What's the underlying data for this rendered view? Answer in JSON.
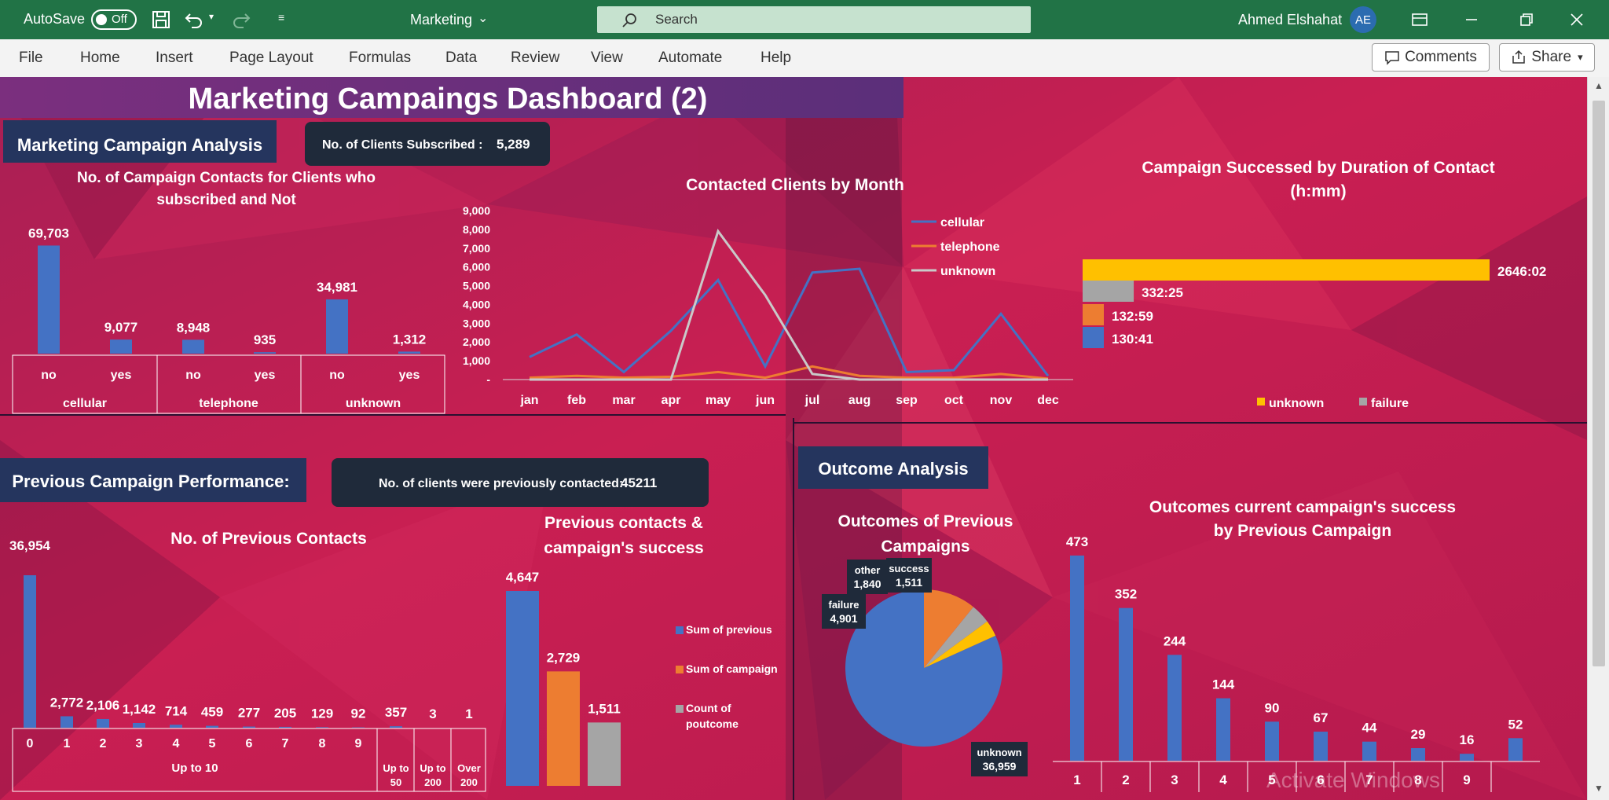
{
  "titlebar": {
    "autosave_label": "AutoSave",
    "autosave_state": "Off",
    "doc_title": "Marketing",
    "search_placeholder": "Search",
    "user_name": "Ahmed Elshahat",
    "user_initials": "AE"
  },
  "ribbon": {
    "menus": [
      "File",
      "Home",
      "Insert",
      "Page Layout",
      "Formulas",
      "Data",
      "Review",
      "View",
      "Automate",
      "Help"
    ],
    "comments_label": "Comments",
    "share_label": "Share"
  },
  "dashboard": {
    "title": "Marketing Campaings Dashboard (2)",
    "section_campaign": "Marketing Campaign Analysis",
    "kpi_subscribed_label": "No. of Clients Subscribed :",
    "kpi_subscribed_value": "5,289",
    "section_previous": "Previous Campaign Performance:",
    "kpi_prev_label": "No. of clients were previously contacted:",
    "kpi_prev_value": "45211",
    "section_outcome": "Outcome Analysis",
    "watermark": "Activate Windows"
  },
  "chart_data": [
    {
      "type": "bar",
      "title": "No. of Campaign Contacts for Clients who subscribed and Not",
      "groups": [
        "cellular",
        "telephone",
        "unknown"
      ],
      "categories": [
        "no",
        "yes",
        "no",
        "yes",
        "no",
        "yes"
      ],
      "values": [
        69703,
        9077,
        8948,
        935,
        34981,
        1312
      ],
      "labels": [
        "69,703",
        "9,077",
        "8,948",
        "935",
        "34,981",
        "1,312"
      ],
      "color": "#4472c4",
      "ylim": [
        0,
        75000
      ]
    },
    {
      "type": "line",
      "title": "Contacted Clients by Month",
      "x": [
        "jan",
        "feb",
        "mar",
        "apr",
        "may",
        "jun",
        "jul",
        "aug",
        "sep",
        "oct",
        "nov",
        "dec"
      ],
      "yticks": [
        "9,000",
        "8,000",
        "7,000",
        "6,000",
        "5,000",
        "4,000",
        "3,000",
        "2,000",
        "1,000",
        "-"
      ],
      "ylim": [
        0,
        9000
      ],
      "series": [
        {
          "name": "cellular",
          "color": "#4472c4",
          "values": [
            1200,
            2400,
            400,
            2600,
            5300,
            700,
            5700,
            5900,
            400,
            500,
            3500,
            200
          ]
        },
        {
          "name": "telephone",
          "color": "#ed7d31",
          "values": [
            100,
            200,
            100,
            150,
            400,
            100,
            700,
            200,
            100,
            100,
            300,
            50
          ]
        },
        {
          "name": "unknown",
          "color": "#c9c9c9",
          "values": [
            0,
            0,
            0,
            0,
            7900,
            4500,
            300,
            0,
            0,
            0,
            0,
            0
          ]
        }
      ]
    },
    {
      "type": "bar",
      "orientation": "horizontal",
      "title": "Campaign Successed by Duration of Contact (h:mm)",
      "labels": [
        "2646:02",
        "332:25",
        "132:59",
        "130:41"
      ],
      "values_minutes": [
        158762,
        19945,
        7979,
        7841
      ],
      "colors": [
        "#ffc000",
        "#a5a5a5",
        "#ed7d31",
        "#4472c4"
      ],
      "legend": [
        {
          "name": "unknown",
          "color": "#ffc000"
        },
        {
          "name": "failure",
          "color": "#a5a5a5"
        }
      ]
    },
    {
      "type": "bar",
      "title": "No. of Previous Contacts",
      "categories": [
        "0",
        "1",
        "2",
        "3",
        "4",
        "5",
        "6",
        "7",
        "8",
        "9",
        "Up to 50",
        "Up to 200",
        "Over 200"
      ],
      "group_label": "Up to 10",
      "values": [
        36954,
        2772,
        2106,
        1142,
        714,
        459,
        277,
        205,
        129,
        92,
        357,
        3,
        1
      ],
      "labels": [
        "36,954",
        "2,772",
        "2,106",
        "1,142",
        "714",
        "459",
        "277",
        "205",
        "129",
        "92",
        "357",
        "3",
        "1"
      ],
      "color": "#4472c4",
      "ylim": [
        0,
        40000
      ]
    },
    {
      "type": "bar",
      "title": "Previous contacts & campaign's success",
      "series": [
        {
          "name": "Sum of previous",
          "color": "#4472c4",
          "value": 4647,
          "label": "4,647"
        },
        {
          "name": "Sum of campaign",
          "color": "#ed7d31",
          "value": 2729,
          "label": "2,729"
        },
        {
          "name": "Count of poutcome",
          "color": "#a5a5a5",
          "value": 1511,
          "label": "1,511"
        }
      ],
      "legend_lines": [
        [
          "Sum of previous"
        ],
        [
          "Sum of campaign"
        ],
        [
          "Count of",
          "poutcome"
        ]
      ]
    },
    {
      "type": "pie",
      "title": "Outcomes of Previous Campaigns",
      "slices": [
        {
          "name": "unknown",
          "value": 36959,
          "label": "36,959",
          "color": "#4472c4"
        },
        {
          "name": "failure",
          "value": 4901,
          "label": "4,901",
          "color": "#ed7d31"
        },
        {
          "name": "other",
          "value": 1840,
          "label": "1,840",
          "color": "#a5a5a5"
        },
        {
          "name": "success",
          "value": 1511,
          "label": "1,511",
          "color": "#ffc000"
        }
      ]
    },
    {
      "type": "bar",
      "title": "Outcomes current campaign's success by Previous Campaign",
      "categories": [
        "1",
        "2",
        "3",
        "4",
        "5",
        "6",
        "7",
        "8",
        "9",
        ""
      ],
      "values": [
        473,
        352,
        244,
        144,
        90,
        67,
        44,
        29,
        16,
        52
      ],
      "labels": [
        "473",
        "352",
        "244",
        "144",
        "90",
        "67",
        "44",
        "29",
        "16",
        "52"
      ],
      "color": "#4472c4",
      "ylim": [
        0,
        500
      ]
    }
  ]
}
